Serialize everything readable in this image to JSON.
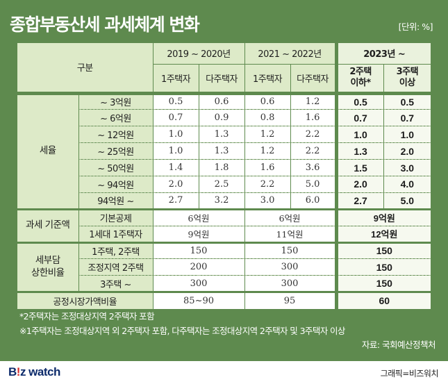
{
  "title": "종합부동산세 과세체계 변화",
  "unit": "[단위: %]",
  "header": {
    "corner": "구분",
    "periods": [
      "2019 ~ 2020년",
      "2021 ~ 2022년",
      "2023년 ~"
    ],
    "sub": [
      "1주택자",
      "다주택자",
      "1주택자",
      "다주택자",
      "2주택\n이하*",
      "3주택\n이상"
    ]
  },
  "rate": {
    "label": "세율",
    "rows": [
      {
        "bracket": "~ 3억원",
        "values": [
          "0.5",
          "0.6",
          "0.6",
          "1.2",
          "0.5",
          "0.5"
        ]
      },
      {
        "bracket": "~ 6억원",
        "values": [
          "0.7",
          "0.9",
          "0.8",
          "1.6",
          "0.7",
          "0.7"
        ]
      },
      {
        "bracket": "~ 12억원",
        "values": [
          "1.0",
          "1.3",
          "1.2",
          "2.2",
          "1.0",
          "1.0"
        ]
      },
      {
        "bracket": "~ 25억원",
        "values": [
          "1.0",
          "1.3",
          "1.2",
          "2.2",
          "1.3",
          "2.0"
        ]
      },
      {
        "bracket": "~ 50억원",
        "values": [
          "1.4",
          "1.8",
          "1.6",
          "3.6",
          "1.5",
          "3.0"
        ]
      },
      {
        "bracket": "~ 94억원",
        "values": [
          "2.0",
          "2.5",
          "2.2",
          "5.0",
          "2.0",
          "4.0"
        ]
      },
      {
        "bracket": "94억원 ~",
        "values": [
          "2.7",
          "3.2",
          "3.0",
          "6.0",
          "2.7",
          "5.0"
        ]
      }
    ]
  },
  "deduction": {
    "label": "과세 기준액",
    "rows": [
      {
        "type": "기본공제",
        "values": [
          "6억원",
          "6억원",
          "9억원"
        ]
      },
      {
        "type": "1세대 1주택자",
        "values": [
          "9억원",
          "11억원",
          "12억원"
        ]
      }
    ]
  },
  "cap": {
    "label": "세부담\n상한비율",
    "rows": [
      {
        "type": "1주택, 2주택",
        "values": [
          "150",
          "150",
          "150"
        ]
      },
      {
        "type": "조정지역 2주택",
        "values": [
          "200",
          "300",
          "150"
        ]
      },
      {
        "type": "3주택 ~",
        "values": [
          "300",
          "300",
          "150"
        ]
      }
    ]
  },
  "fmv": {
    "label": "공정시장가액비율",
    "values": [
      "85~90",
      "95",
      "60"
    ]
  },
  "notes": [
    "*2주택자는 조정대상지역 2주택자 포함",
    "※1주택자는 조정대상지역 외 2주택자 포함, 다주택자는 조정대상지역 2주택자 및 3주택자 이상"
  ],
  "source": "자료: 국회예산정책처",
  "footer": {
    "logo_b": "B",
    "logo_bang": "!",
    "logo_z": "z watch",
    "credit": "그래픽=비즈워치"
  }
}
